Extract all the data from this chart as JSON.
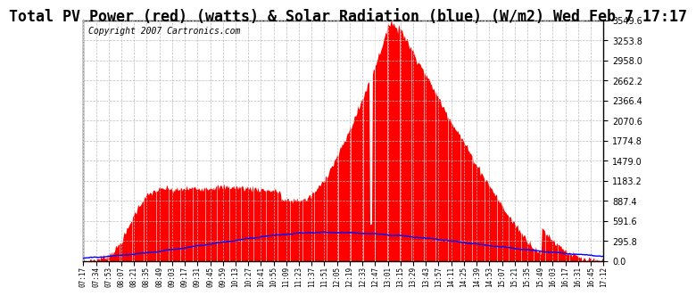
{
  "title": "Total PV Power (red) (watts) & Solar Radiation (blue) (W/m2) Wed Feb 7 17:17",
  "copyright": "Copyright 2007 Cartronics.com",
  "background_color": "#ffffff",
  "plot_bg_color": "#ffffff",
  "grid_color": "#bbbbbb",
  "pv_color": "#ff0000",
  "solar_color": "#0000ff",
  "ylim": [
    0.0,
    3549.6
  ],
  "yticks": [
    0.0,
    295.8,
    591.6,
    887.4,
    1183.2,
    1479.0,
    1774.8,
    2070.6,
    2366.4,
    2662.2,
    2958.0,
    3253.8,
    3549.6
  ],
  "x_labels": [
    "07:17",
    "07:34",
    "07:53",
    "08:07",
    "08:21",
    "08:35",
    "08:49",
    "09:03",
    "09:17",
    "09:31",
    "09:45",
    "09:59",
    "10:13",
    "10:27",
    "10:41",
    "10:55",
    "11:09",
    "11:23",
    "11:37",
    "11:51",
    "12:05",
    "12:19",
    "12:33",
    "12:47",
    "13:01",
    "13:15",
    "13:29",
    "13:43",
    "13:57",
    "14:11",
    "14:25",
    "14:39",
    "14:53",
    "15:07",
    "15:21",
    "15:35",
    "15:49",
    "16:03",
    "16:17",
    "16:31",
    "16:45",
    "17:12"
  ],
  "title_fontsize": 12,
  "copyright_fontsize": 7,
  "tick_fontsize": 7,
  "xtick_fontsize": 5.5
}
